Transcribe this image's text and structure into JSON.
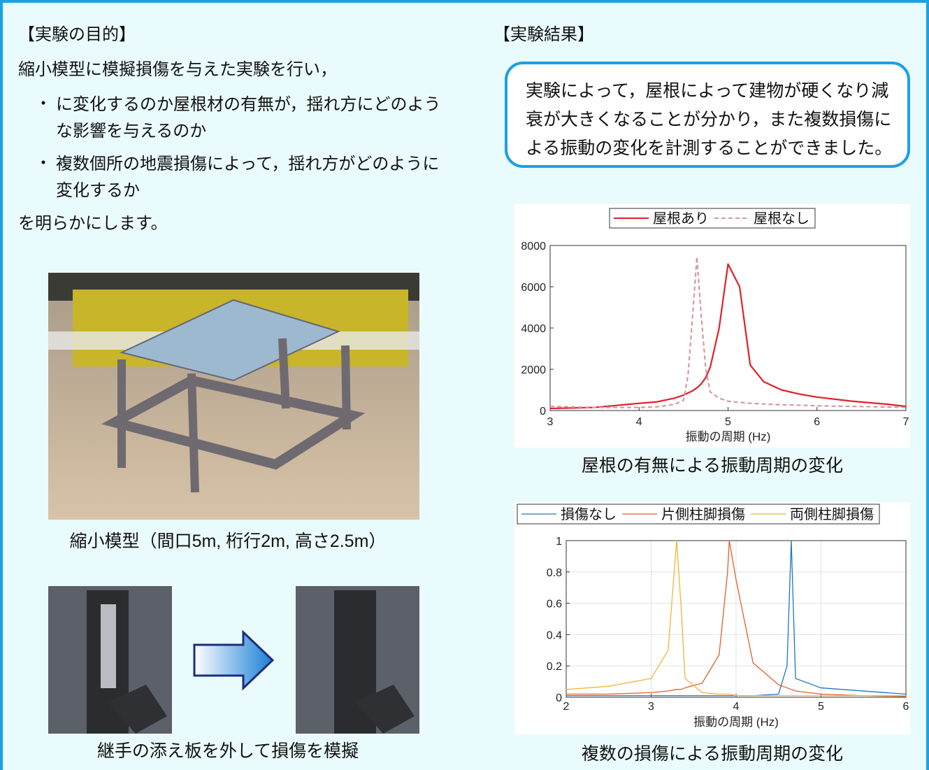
{
  "left": {
    "heading": "【実験の目的】",
    "intro": "縮小模型に模擬損傷を与えた実験を行い，",
    "bullets": [
      "に変化するのか屋根材の有無が，揺れ方にどのような影響を与えるのか",
      "複数個所の地震損傷によって，揺れ方がどのように変化するか"
    ],
    "closing": "を明らかにします。",
    "photo_caption": "縮小模型（間口5m, 桁行2m, 高さ2.5m）",
    "detail_caption": "継手の添え板を外して損傷を模擬"
  },
  "right": {
    "heading": "【実験結果】",
    "summary": "実験によって，屋根によって建物が硬くなり減衰が大きくなることが分かり，また複数損傷による振動の変化を計測することができました。"
  },
  "chart_data": [
    {
      "type": "line",
      "title": "屋根の有無による振動周期の変化",
      "x_label": "振動の周期 (Hz)",
      "x": [
        3,
        3.5,
        4,
        4.2,
        4.4,
        4.5,
        4.55,
        4.6,
        4.65,
        4.7,
        4.75,
        4.8,
        4.9,
        5,
        5.13,
        5.25,
        5.4,
        5.6,
        5.8,
        6,
        6.4,
        6.8,
        7
      ],
      "series": [
        {
          "name": "屋根あり",
          "color": "#e0202a",
          "line_style": "solid",
          "values": [
            100,
            150,
            350,
            420,
            600,
            750,
            850,
            950,
            1100,
            1300,
            1600,
            2100,
            4000,
            7100,
            6000,
            2200,
            1400,
            1000,
            800,
            650,
            450,
            300,
            200
          ]
        },
        {
          "name": "屋根なし",
          "color": "#d59aa2",
          "line_style": "dashed",
          "values": [
            200,
            150,
            150,
            180,
            300,
            500,
            1700,
            4500,
            7450,
            4500,
            2000,
            900,
            600,
            450,
            400,
            350,
            320,
            280,
            260,
            230,
            200,
            170,
            150
          ]
        }
      ],
      "xlim": [
        3,
        7
      ],
      "xticks": [
        3,
        4,
        5,
        6,
        7
      ],
      "ylim": [
        0,
        8000
      ],
      "yticks": [
        0,
        2000,
        4000,
        6000,
        8000
      ],
      "grid": false
    },
    {
      "type": "line",
      "title": "複数の損傷による振動周期の変化",
      "x_label": "振動の周期 (Hz)",
      "x": [
        2,
        2.5,
        3,
        3.2,
        3.3,
        3.35,
        3.4,
        3.6,
        3.8,
        3.9,
        3.92,
        4.0,
        4.2,
        4.5,
        4.6,
        4.65,
        4.7,
        5,
        5.5,
        6
      ],
      "series": [
        {
          "name": "損傷なし",
          "color": "#1f77c0",
          "line_style": "solid",
          "values": [
            0.01,
            0.01,
            0.01,
            0.01,
            0.01,
            0.01,
            0.01,
            0.01,
            0.01,
            0.01,
            0.01,
            0.01,
            0.01,
            0.02,
            0.2,
            1,
            0.12,
            0.06,
            0.04,
            0.02
          ]
        },
        {
          "name": "片側柱脚損傷",
          "color": "#e0602a",
          "line_style": "solid",
          "values": [
            0.02,
            0.02,
            0.03,
            0.04,
            0.05,
            0.05,
            0.06,
            0.09,
            0.27,
            0.8,
            1,
            0.75,
            0.22,
            0.08,
            0.06,
            0.05,
            0.04,
            0.02,
            0.01,
            0.005
          ]
        },
        {
          "name": "両側柱脚損傷",
          "color": "#f0b43a",
          "line_style": "solid",
          "values": [
            0.05,
            0.07,
            0.12,
            0.3,
            1,
            0.6,
            0.12,
            0.03,
            0.02,
            0.02,
            0.02,
            0.01,
            0.01,
            0.01,
            0.01,
            0.01,
            0.01,
            0.01,
            0.01,
            0.01
          ]
        }
      ],
      "xlim": [
        2,
        6
      ],
      "xticks": [
        2,
        3,
        4,
        5,
        6
      ],
      "ylim": [
        0,
        1
      ],
      "yticks": [
        0,
        0.2,
        0.4,
        0.6,
        0.8,
        1
      ],
      "grid": true
    }
  ]
}
